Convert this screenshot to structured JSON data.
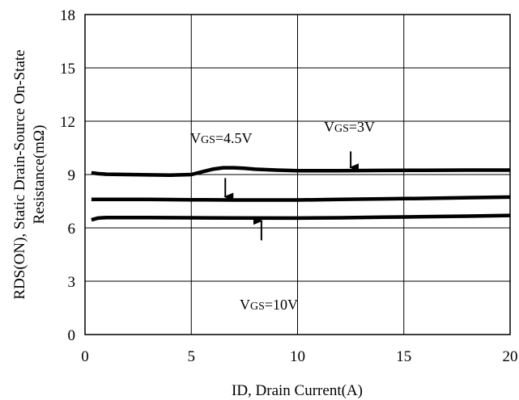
{
  "chart_data": {
    "type": "line",
    "xlabel": "ID, Drain Current(A)",
    "ylabel_line1": "RDS(ON), Static Drain-Source On-State",
    "ylabel_line2": "Resistance(mΩ)",
    "xlim": [
      0,
      20
    ],
    "ylim": [
      0,
      18
    ],
    "xticks": [
      0,
      5,
      10,
      15,
      20
    ],
    "yticks": [
      0,
      3,
      6,
      9,
      12,
      15,
      18
    ],
    "grid": true,
    "series": [
      {
        "x": [
          0.3,
          0.6,
          1,
          2,
          3,
          4,
          5,
          5.5,
          6,
          6.5,
          7,
          7.5,
          8,
          9,
          10,
          12,
          14,
          16,
          18,
          20
        ],
        "y": [
          9.1,
          9.05,
          9.02,
          9.0,
          8.98,
          8.97,
          9.0,
          9.15,
          9.3,
          9.38,
          9.38,
          9.35,
          9.3,
          9.25,
          9.22,
          9.22,
          9.23,
          9.24,
          9.25,
          9.25
        ]
      },
      {
        "x": [
          0.3,
          1,
          3,
          5,
          7,
          10,
          12,
          14,
          16,
          18,
          20
        ],
        "y": [
          7.6,
          7.6,
          7.6,
          7.58,
          7.57,
          7.57,
          7.6,
          7.63,
          7.66,
          7.7,
          7.73
        ]
      },
      {
        "x": [
          0.3,
          0.6,
          1,
          3,
          5,
          7,
          10,
          12,
          14,
          16,
          18,
          20
        ],
        "y": [
          6.45,
          6.55,
          6.58,
          6.58,
          6.57,
          6.56,
          6.55,
          6.57,
          6.6,
          6.63,
          6.66,
          6.7
        ]
      }
    ],
    "annotations": [
      {
        "label": "VGS=4.5V",
        "arrow_from": [
          6.6,
          8.8
        ],
        "arrow_to": [
          6.6,
          7.75
        ]
      },
      {
        "label": "VGS=3V",
        "arrow_from": [
          12.5,
          10.3
        ],
        "arrow_to": [
          12.5,
          9.4
        ]
      },
      {
        "label": "VGS=10V",
        "arrow_from": [
          8.3,
          5.3
        ],
        "arrow_to": [
          8.3,
          6.4
        ]
      }
    ]
  }
}
